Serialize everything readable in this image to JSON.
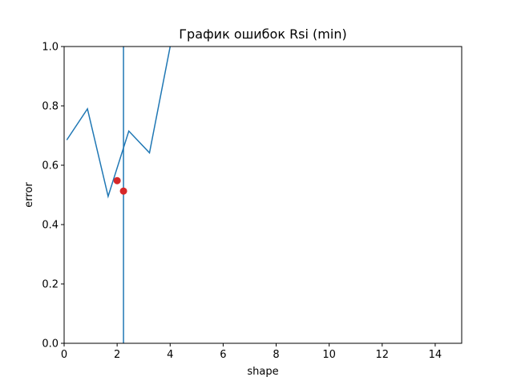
{
  "chart_data": {
    "type": "line",
    "title": "График ошибок Rsi (min)",
    "xlabel": "shape",
    "ylabel": "error",
    "xlim": [
      0,
      15
    ],
    "ylim": [
      0,
      1.0
    ],
    "xticks": [
      0,
      2,
      4,
      6,
      8,
      10,
      12,
      14
    ],
    "yticks": [
      0.0,
      0.2,
      0.4,
      0.6,
      0.8,
      1.0
    ],
    "xtick_labels": [
      "0",
      "2",
      "4",
      "6",
      "8",
      "10",
      "12",
      "14"
    ],
    "ytick_labels": [
      "0.0",
      "0.2",
      "0.4",
      "0.6",
      "0.8",
      "1.0"
    ],
    "grid": false,
    "series": [
      {
        "type": "line",
        "color": "#1f77b4",
        "x": [
          0.1,
          0.88,
          1.66,
          2.44,
          3.22,
          4.0,
          4.78
        ],
        "y": [
          0.685,
          0.79,
          0.495,
          0.715,
          0.642,
          1.0,
          1.6
        ]
      }
    ],
    "vline": {
      "x": 2.24,
      "color": "#1f77b4"
    },
    "points": {
      "color": "#d62728",
      "x": [
        2.0,
        2.24
      ],
      "y": [
        0.548,
        0.513
      ]
    }
  }
}
